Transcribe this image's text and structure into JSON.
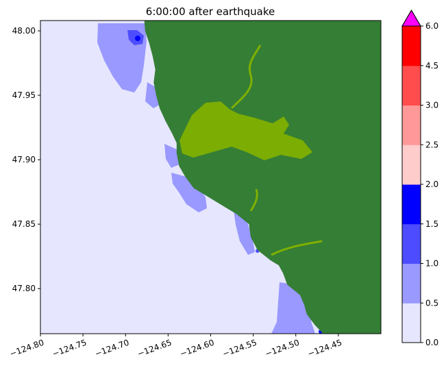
{
  "chart_data": {
    "type": "heatmap",
    "title": "6:00:00 after earthquake",
    "xlabel": "",
    "ylabel": "",
    "xlim": [
      -124.8,
      -124.4
    ],
    "ylim": [
      47.765,
      48.008
    ],
    "x_ticks": [
      -124.8,
      -124.75,
      -124.7,
      -124.65,
      -124.6,
      -124.55,
      -124.5,
      -124.45
    ],
    "x_tick_labels": [
      "−124.80",
      "−124.75",
      "−124.70",
      "−124.65",
      "−124.60",
      "−124.55",
      "−124.50",
      "−124.45"
    ],
    "y_ticks": [
      47.8,
      47.85,
      47.9,
      47.95,
      48.0
    ],
    "y_tick_labels": [
      "47.80",
      "47.85",
      "47.90",
      "47.95",
      "48.00"
    ],
    "colorbar": {
      "levels": [
        0.0,
        0.5,
        1.0,
        1.5,
        2.0,
        2.5,
        3.0,
        4.5,
        6.0
      ],
      "tick_labels": [
        "0.0",
        "0.5",
        "1.0",
        "1.5",
        "2.0",
        "2.5",
        "3.0",
        "4.5",
        "6.0"
      ],
      "colors": [
        "#e6e6ff",
        "#9999ff",
        "#4d4dff",
        "#0000ff",
        "#ffcccc",
        "#ff9999",
        "#ff4d4d",
        "#ff0000"
      ],
      "extend_color": "#ff00ff",
      "extend": "max"
    },
    "land_color": "#357e35",
    "inundated_land_color": "#7fb000",
    "coastline_lon_at_lat": [
      [
        48.008,
        -124.678
      ],
      [
        48.0,
        -124.677
      ],
      [
        47.99,
        -124.672
      ],
      [
        47.98,
        -124.668
      ],
      [
        47.97,
        -124.665
      ],
      [
        47.96,
        -124.667
      ],
      [
        47.95,
        -124.664
      ],
      [
        47.94,
        -124.66
      ],
      [
        47.93,
        -124.653
      ],
      [
        47.92,
        -124.645
      ],
      [
        47.913,
        -124.64
      ],
      [
        47.905,
        -124.64
      ],
      [
        47.895,
        -124.637
      ],
      [
        47.887,
        -124.63
      ],
      [
        47.878,
        -124.62
      ],
      [
        47.872,
        -124.605
      ],
      [
        47.866,
        -124.59
      ],
      [
        47.858,
        -124.57
      ],
      [
        47.85,
        -124.555
      ],
      [
        47.84,
        -124.553
      ],
      [
        47.83,
        -124.545
      ],
      [
        47.822,
        -124.53
      ],
      [
        47.818,
        -124.52
      ],
      [
        47.812,
        -124.515
      ],
      [
        47.803,
        -124.51
      ],
      [
        47.795,
        -124.495
      ],
      [
        47.787,
        -124.49
      ],
      [
        47.78,
        -124.487
      ],
      [
        47.772,
        -124.478
      ],
      [
        47.765,
        -124.468
      ]
    ]
  }
}
